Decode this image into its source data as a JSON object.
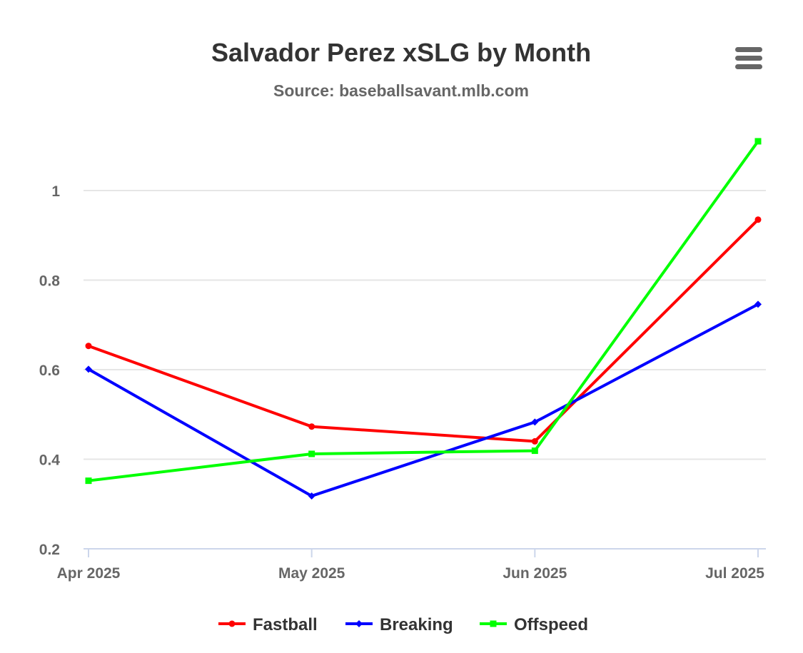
{
  "chart_data": {
    "type": "line",
    "title": "Salvador Perez xSLG by Month",
    "subtitle": "Source: baseballsavant.mlb.com",
    "xlabel": "",
    "ylabel": "",
    "categories": [
      "Apr 2025",
      "May 2025",
      "Jun 2025",
      "Jul 2025"
    ],
    "ylim": [
      0.2,
      1.15
    ],
    "yticks": [
      0.2,
      0.4,
      0.6,
      0.8,
      1
    ],
    "ytick_labels": [
      "0.2",
      "0.4",
      "0.6",
      "0.8",
      "1"
    ],
    "grid": true,
    "legend_position": "bottom-center",
    "series": [
      {
        "name": "Fastball",
        "color": "#ff0000",
        "marker": "circle",
        "values": [
          0.653,
          0.473,
          0.44,
          0.935
        ]
      },
      {
        "name": "Breaking",
        "color": "#0000ff",
        "marker": "diamond",
        "values": [
          0.601,
          0.318,
          0.483,
          0.746
        ]
      },
      {
        "name": "Offspeed",
        "color": "#00ff00",
        "marker": "square",
        "values": [
          0.352,
          0.412,
          0.419,
          1.11
        ]
      }
    ]
  },
  "toolbar": {
    "menu_icon": "hamburger-menu-icon"
  }
}
